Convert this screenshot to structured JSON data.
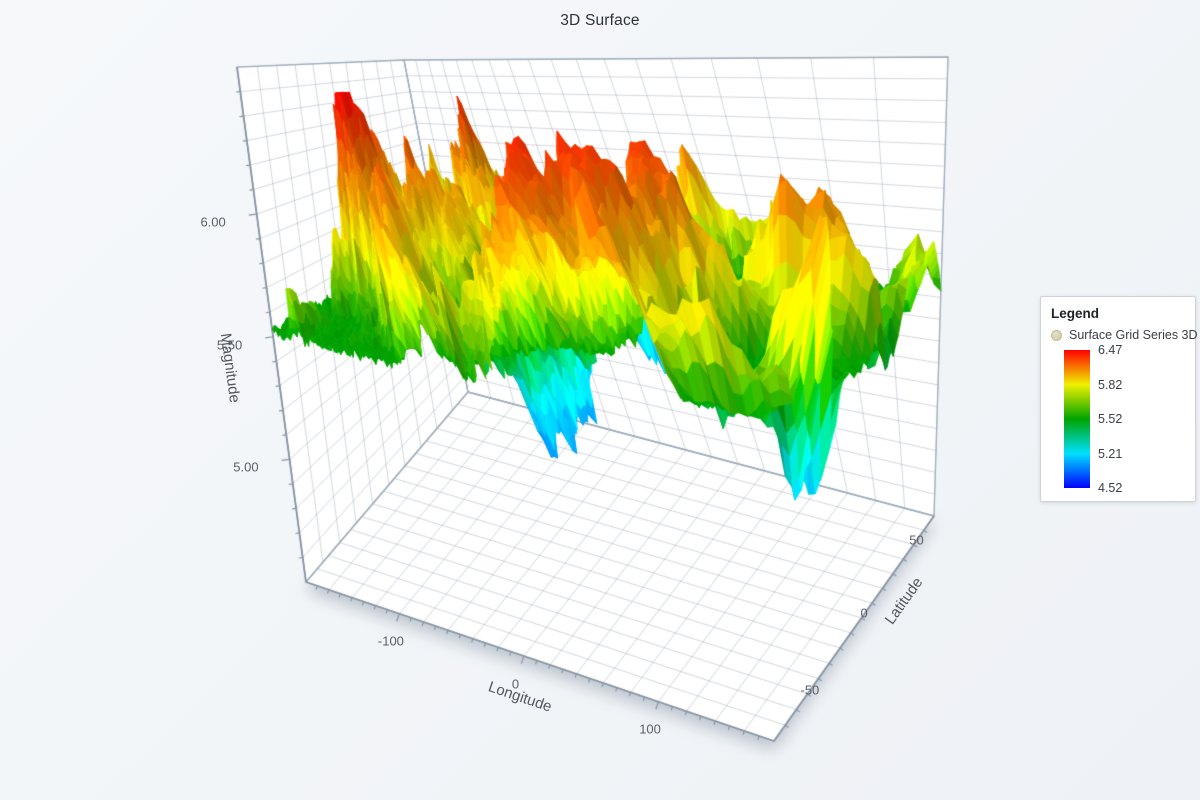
{
  "title": "3D Surface",
  "legend": {
    "title": "Legend",
    "series_label": "Surface Grid Series 3D",
    "series_bullet_color": "#d6d0ae"
  },
  "chart_data": {
    "type": "surface",
    "title": "3D Surface",
    "axes": {
      "x": {
        "label": "Longitude",
        "min": -180,
        "max": 180,
        "major_ticks": [
          -100,
          0,
          100
        ],
        "minor_step": 10
      },
      "z": {
        "label": "Latitude",
        "min": -75,
        "max": 75,
        "major_ticks": [
          -50,
          0,
          50
        ],
        "minor_step": 10
      },
      "y": {
        "label": "Magnitude",
        "min": 4.5,
        "max": 6.6,
        "major_ticks": [
          5.0,
          5.5,
          6.0
        ],
        "minor_step": 0.1,
        "tick_format_decimals": 2
      }
    },
    "value_range": {
      "min": 4.52,
      "max": 6.47
    },
    "palette": [
      {
        "value": 4.52,
        "color": "#0000ff"
      },
      {
        "value": 5.21,
        "color": "#00e0ff"
      },
      {
        "value": 5.52,
        "color": "#00a400"
      },
      {
        "value": 5.82,
        "color": "#f0f000"
      },
      {
        "value": 6.47,
        "color": "#ff0000"
      }
    ],
    "surface": {
      "grid_nx": 150,
      "grid_nz": 75,
      "base_level": 5.52,
      "peak_amplitude": 0.97,
      "valley_amplitude": 1.04,
      "seed": 7
    }
  },
  "colors": {
    "wall": "#ffffff",
    "wall_grid": "rgba(140,152,166,0.38)",
    "box_edge": "#9fadbb",
    "axis_line": "#8794a3",
    "tick_label": "#5b6067",
    "axis_title": "#53575e",
    "title_text": "#2e3338",
    "legend_border": "#ccd3db",
    "legend_text": "#3a3f45"
  }
}
